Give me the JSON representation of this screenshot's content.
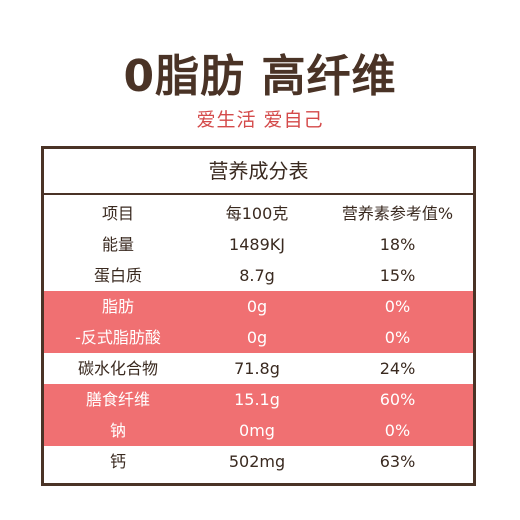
{
  "heading": {
    "title": "0脂肪 高纤维",
    "subtitle": "爱生活 爱自己"
  },
  "table": {
    "title": "营养成分表",
    "columns": [
      "项目",
      "每100克",
      "营养素参考值%"
    ],
    "rows": [
      {
        "name": "能量",
        "per100g": "1489KJ",
        "nrv": "18%",
        "highlight": false
      },
      {
        "name": "蛋白质",
        "per100g": "8.7g",
        "nrv": "15%",
        "highlight": false
      },
      {
        "name": "脂肪",
        "per100g": "0g",
        "nrv": "0%",
        "highlight": true
      },
      {
        "name": "-反式脂肪酸",
        "per100g": "0g",
        "nrv": "0%",
        "highlight": true
      },
      {
        "name": "碳水化合物",
        "per100g": "71.8g",
        "nrv": "24%",
        "highlight": false
      },
      {
        "name": "膳食纤维",
        "per100g": "15.1g",
        "nrv": "60%",
        "highlight": true
      },
      {
        "name": "钠",
        "per100g": "0mg",
        "nrv": "0%",
        "highlight": true
      },
      {
        "name": "钙",
        "per100g": "502mg",
        "nrv": "63%",
        "highlight": false
      }
    ]
  },
  "colors": {
    "highlight": "#f07072",
    "title": "#4a3326",
    "subtitle": "#d44a4a",
    "border": "#4a3326"
  }
}
